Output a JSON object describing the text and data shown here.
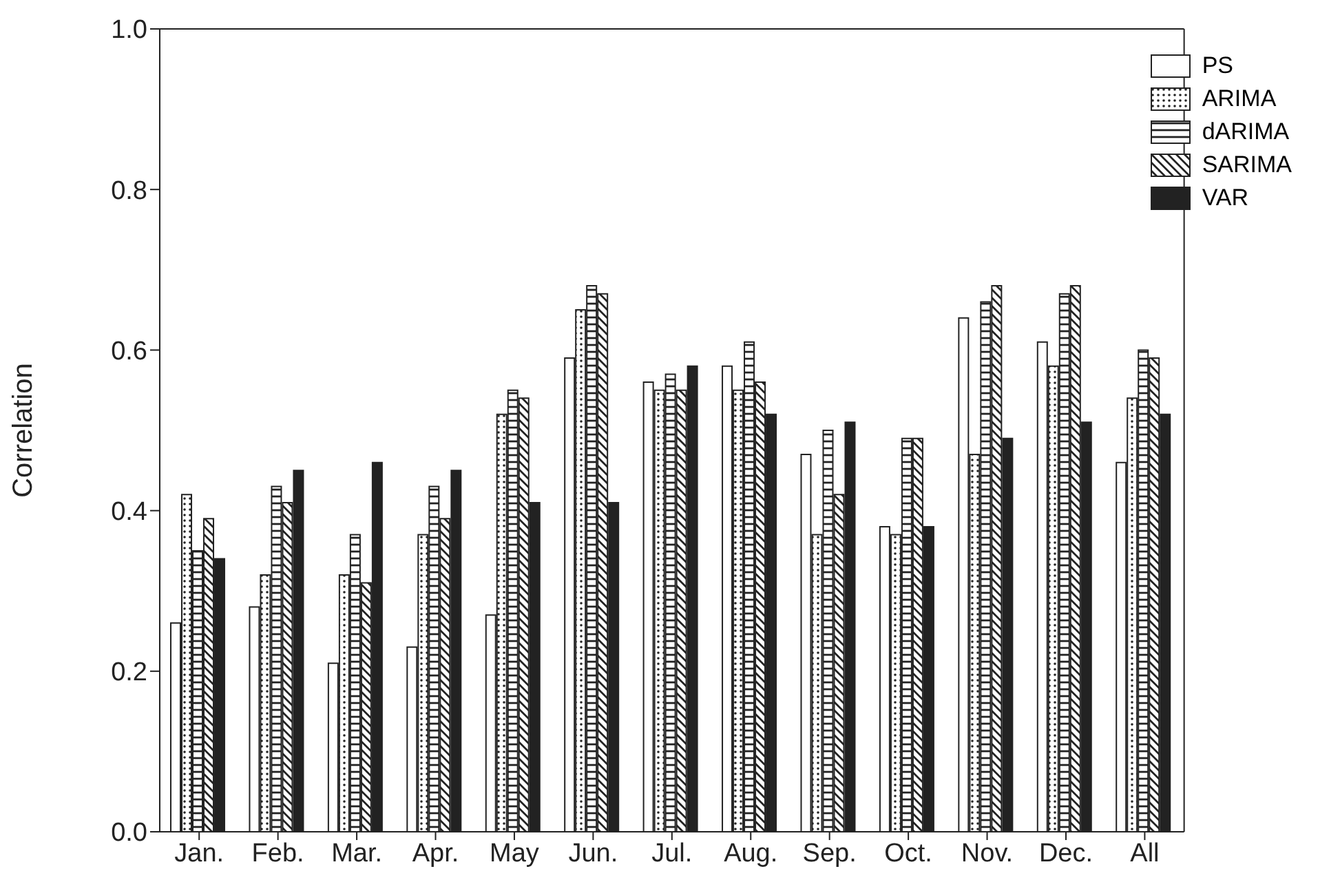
{
  "chart_data": {
    "type": "bar",
    "ylabel": "Correlation",
    "categories": [
      "Jan.",
      "Feb.",
      "Mar.",
      "Apr.",
      "May",
      "Jun.",
      "Jul.",
      "Aug.",
      "Sep.",
      "Oct.",
      "Nov.",
      "Dec.",
      "All"
    ],
    "series": [
      {
        "name": "PS",
        "color": "#ffffff",
        "values": [
          0.26,
          0.28,
          0.21,
          0.23,
          0.27,
          0.59,
          0.56,
          0.58,
          0.47,
          0.38,
          0.64,
          0.61,
          0.46
        ]
      },
      {
        "name": "ARIMA",
        "color": "#222222",
        "values": [
          0.42,
          0.32,
          0.32,
          0.37,
          0.52,
          0.65,
          0.55,
          0.55,
          0.37,
          0.37,
          0.47,
          0.58,
          0.54
        ]
      },
      {
        "name": "dARIMA",
        "color": "#222222",
        "values": [
          0.35,
          0.43,
          0.37,
          0.43,
          0.55,
          0.68,
          0.57,
          0.61,
          0.5,
          0.49,
          0.66,
          0.67,
          0.6
        ]
      },
      {
        "name": "SARIMA",
        "color": "#222222",
        "values": [
          0.39,
          0.41,
          0.31,
          0.39,
          0.54,
          0.67,
          0.55,
          0.56,
          0.42,
          0.49,
          0.68,
          0.68,
          0.59
        ]
      },
      {
        "name": "VAR",
        "color": "#222222",
        "values": [
          0.34,
          0.45,
          0.46,
          0.45,
          0.41,
          0.41,
          0.58,
          0.52,
          0.51,
          0.38,
          0.49,
          0.51,
          0.52
        ]
      }
    ],
    "ylim": [
      0,
      1
    ],
    "yticks": [
      {
        "value": 0,
        "label": "0.0"
      },
      {
        "value": 0.2,
        "label": "0.2"
      },
      {
        "value": 0.4,
        "label": "0.4"
      },
      {
        "value": 0.6,
        "label": "0.6"
      },
      {
        "value": 0.8,
        "label": "0.8"
      },
      {
        "value": 1,
        "label": "1.0"
      }
    ],
    "grid": false,
    "legend": "top right"
  }
}
